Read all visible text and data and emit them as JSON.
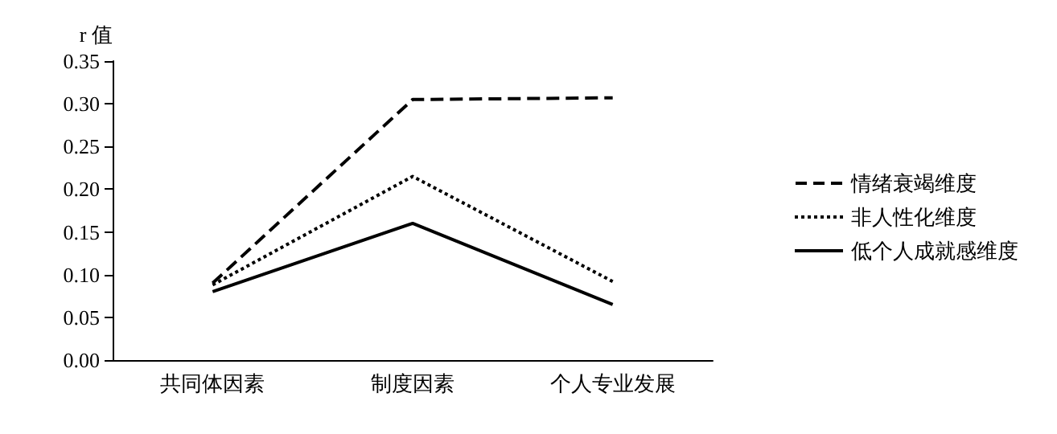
{
  "chart_data": {
    "type": "line",
    "ylabel": "r 值",
    "categories": [
      "共同体因素",
      "制度因素",
      "个人专业发展"
    ],
    "series": [
      {
        "name": "情绪衰竭维度",
        "color": "#000000",
        "line_style": "dashed",
        "values": [
          0.09,
          0.305,
          0.307
        ]
      },
      {
        "name": "非人性化维度",
        "color": "#000000",
        "line_style": "dotted",
        "values": [
          0.088,
          0.215,
          0.092
        ]
      },
      {
        "name": "低个人成就感维度",
        "color": "#000000",
        "line_style": "solid",
        "values": [
          0.08,
          0.16,
          0.065
        ]
      }
    ],
    "ylim": [
      0,
      0.35
    ],
    "yticks": [
      {
        "value": 0,
        "label": "0.00"
      },
      {
        "value": 0.05,
        "label": "0.05"
      },
      {
        "value": 0.1,
        "label": "0.10"
      },
      {
        "value": 0.15,
        "label": "0.15"
      },
      {
        "value": 0.2,
        "label": "0.20"
      },
      {
        "value": 0.25,
        "label": "0.25"
      },
      {
        "value": 0.3,
        "label": "0.30"
      },
      {
        "value": 0.35,
        "label": "0.35"
      }
    ],
    "grid": false,
    "legend": "right",
    "marker": "none"
  }
}
